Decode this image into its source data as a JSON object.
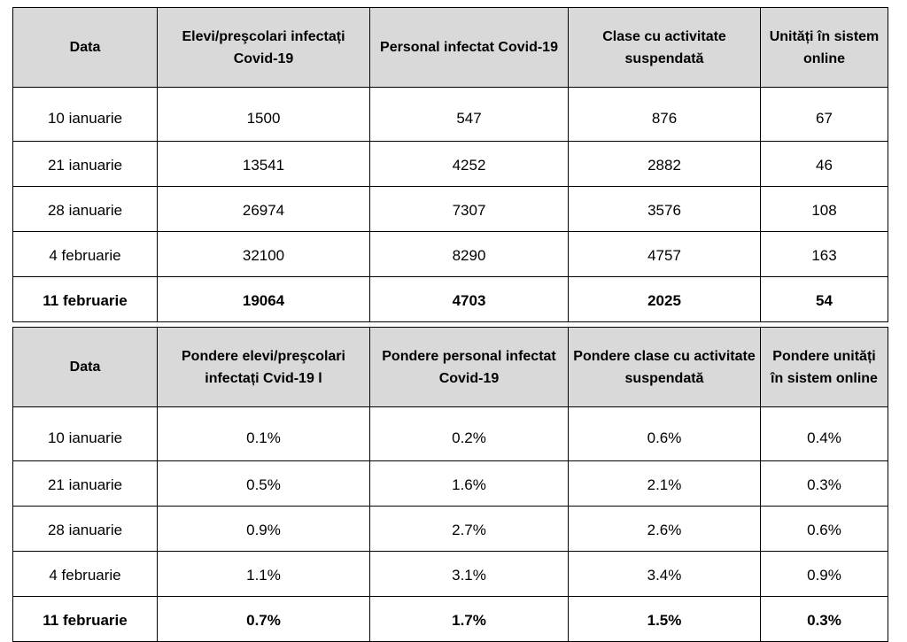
{
  "table1": {
    "headers": [
      "Data",
      "Elevi/preşcolari infectați Covid-19",
      "Personal infectat Covid-19",
      "Clase cu activitate suspendată",
      "Unități în sistem online"
    ],
    "rows": [
      [
        "10 ianuarie",
        "1500",
        "547",
        "876",
        "67"
      ],
      [
        "21 ianuarie",
        "13541",
        "4252",
        "2882",
        "46"
      ],
      [
        "28 ianuarie",
        "26974",
        "7307",
        "3576",
        "108"
      ],
      [
        "4 februarie",
        "32100",
        "8290",
        "4757",
        "163"
      ],
      [
        "11 februarie",
        "19064",
        "4703",
        "2025",
        "54"
      ]
    ]
  },
  "table2": {
    "headers": [
      "Data",
      "Pondere elevi/preşcolari infectați Cvid-19 l",
      "Pondere personal infectat Covid-19",
      "Pondere clase cu activitate suspendată",
      "Pondere unități în sistem online"
    ],
    "rows": [
      [
        "10 ianuarie",
        "0.1%",
        "0.2%",
        "0.6%",
        "0.4%"
      ],
      [
        "21 ianuarie",
        "0.5%",
        "1.6%",
        "2.1%",
        "0.3%"
      ],
      [
        "28 ianuarie",
        "0.9%",
        "2.7%",
        "2.6%",
        "0.6%"
      ],
      [
        "4 februarie",
        "1.1%",
        "3.1%",
        "3.4%",
        "0.9%"
      ],
      [
        "11 februarie",
        "0.7%",
        "1.7%",
        "1.5%",
        "0.3%"
      ]
    ]
  }
}
